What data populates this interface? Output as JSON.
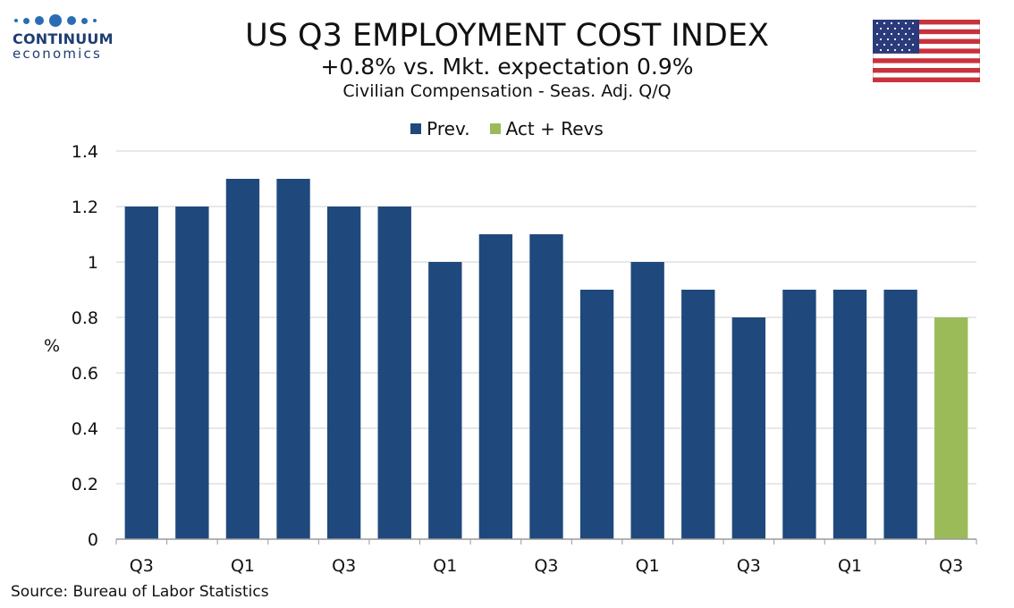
{
  "branding": {
    "logo_name": "CONTINUUM",
    "logo_sub": "economics",
    "brand_color": "#1f3f72"
  },
  "header": {
    "title": "US Q3 EMPLOYMENT COST INDEX",
    "subtitle": "+0.8% vs. Mkt. expectation 0.9%",
    "subtitle2": "Civilian Compensation - Seas. Adj. Q/Q"
  },
  "legend": {
    "prev_label": "Prev.",
    "act_label": "Act + Revs",
    "prev_color": "#1f497d",
    "act_color": "#9bbb59"
  },
  "source": "Source: Bureau of Labor Statistics",
  "chart_data": {
    "type": "bar",
    "title": "US Q3 EMPLOYMENT COST INDEX",
    "xlabel": "",
    "ylabel": "%",
    "ylim": [
      0,
      1.4
    ],
    "y_ticks": [
      "0",
      "0.2",
      "0.4",
      "0.6",
      "0.8",
      "1",
      "1.2",
      "1.4"
    ],
    "y_tick_values": [
      0,
      0.2,
      0.4,
      0.6,
      0.8,
      1,
      1.2,
      1.4
    ],
    "x_tick_labels": [
      "Q3",
      "Q1",
      "Q3",
      "Q1",
      "Q3",
      "Q1",
      "Q3",
      "Q1",
      "Q3"
    ],
    "x_tick_slots": [
      0,
      2,
      4,
      6,
      8,
      10,
      12,
      14,
      16
    ],
    "grid": true,
    "legend_position": "top-center",
    "series": [
      {
        "name": "Prev.",
        "color": "#1f497d",
        "values": [
          1.2,
          1.2,
          1.3,
          1.3,
          1.2,
          1.2,
          1.0,
          1.1,
          1.1,
          0.9,
          1.0,
          0.9,
          0.8,
          0.9,
          0.9,
          0.9,
          null
        ]
      },
      {
        "name": "Act + Revs",
        "color": "#9bbb59",
        "values": [
          null,
          null,
          null,
          null,
          null,
          null,
          null,
          null,
          null,
          null,
          null,
          null,
          null,
          null,
          null,
          null,
          0.8
        ]
      }
    ]
  }
}
